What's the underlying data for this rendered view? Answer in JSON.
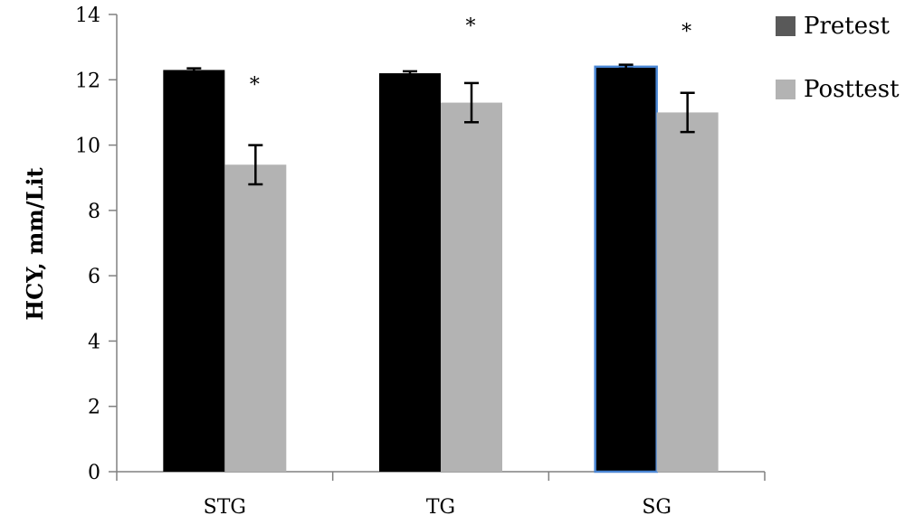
{
  "chart_data": {
    "type": "bar",
    "title": "",
    "xlabel": "",
    "ylabel": "HCY, mm/Lit",
    "ylim": [
      0,
      14
    ],
    "yticks": [
      0,
      2,
      4,
      6,
      8,
      10,
      12,
      14
    ],
    "categories": [
      "STG",
      "TG",
      "SG"
    ],
    "series": [
      {
        "name": "Pretest",
        "color": "#000000",
        "legend_color": "#595959",
        "values": [
          12.3,
          12.2,
          12.4
        ],
        "errors": [
          0.05,
          0.06,
          0.06
        ]
      },
      {
        "name": "Posttest",
        "color": "#b3b3b3",
        "legend_color": "#b3b3b3",
        "values": [
          9.4,
          11.3,
          11.0
        ],
        "errors": [
          0.6,
          0.6,
          0.6
        ]
      }
    ],
    "significance_markers": [
      "*",
      "*",
      "*"
    ],
    "highlighted_bar": {
      "category": "SG",
      "series": "Pretest",
      "outline_color": "#4a86d4"
    },
    "legend_position": "top-right",
    "grid": false
  }
}
